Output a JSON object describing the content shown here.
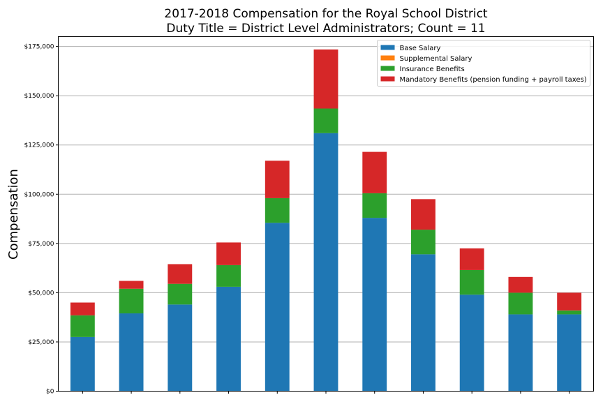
{
  "chart_data": {
    "type": "bar",
    "stacked": true,
    "title": [
      "2017-2018 Compensation for the Royal School District",
      "Duty Title = District Level Administrators; Count = 11"
    ],
    "xlabel": "",
    "ylabel": "Compensation",
    "ylim": [
      0,
      180000
    ],
    "yticks": [
      0,
      25000,
      50000,
      75000,
      100000,
      125000,
      150000,
      175000
    ],
    "ytick_labels": [
      "$0",
      "$25,000",
      "$50,000",
      "$75,000",
      "$100,000",
      "$125,000",
      "$150,000",
      "$175,000"
    ],
    "categories": [
      "",
      "",
      "",
      "",
      "",
      "",
      "",
      "",
      "",
      "",
      ""
    ],
    "grid": "horizontal",
    "legend_position": "top-right",
    "series": [
      {
        "name": "Base Salary",
        "color": "#1f77b4",
        "values": [
          27500,
          39500,
          44000,
          53000,
          85500,
          131000,
          88000,
          69500,
          49000,
          39000,
          39000
        ]
      },
      {
        "name": "Supplemental Salary",
        "color": "#ff7f0e",
        "values": [
          0,
          0,
          0,
          0,
          0,
          0,
          0,
          0,
          0,
          0,
          0
        ]
      },
      {
        "name": "Insurance Benefits",
        "color": "#2ca02c",
        "values": [
          11000,
          12500,
          10500,
          11000,
          12500,
          12500,
          12500,
          12500,
          12500,
          11000,
          2000
        ]
      },
      {
        "name": "Mandatory Benefits (pension funding + payroll taxes)",
        "color": "#d62728",
        "values": [
          6500,
          4000,
          10000,
          11500,
          19000,
          30000,
          21000,
          15500,
          11000,
          8000,
          9000
        ]
      }
    ]
  }
}
